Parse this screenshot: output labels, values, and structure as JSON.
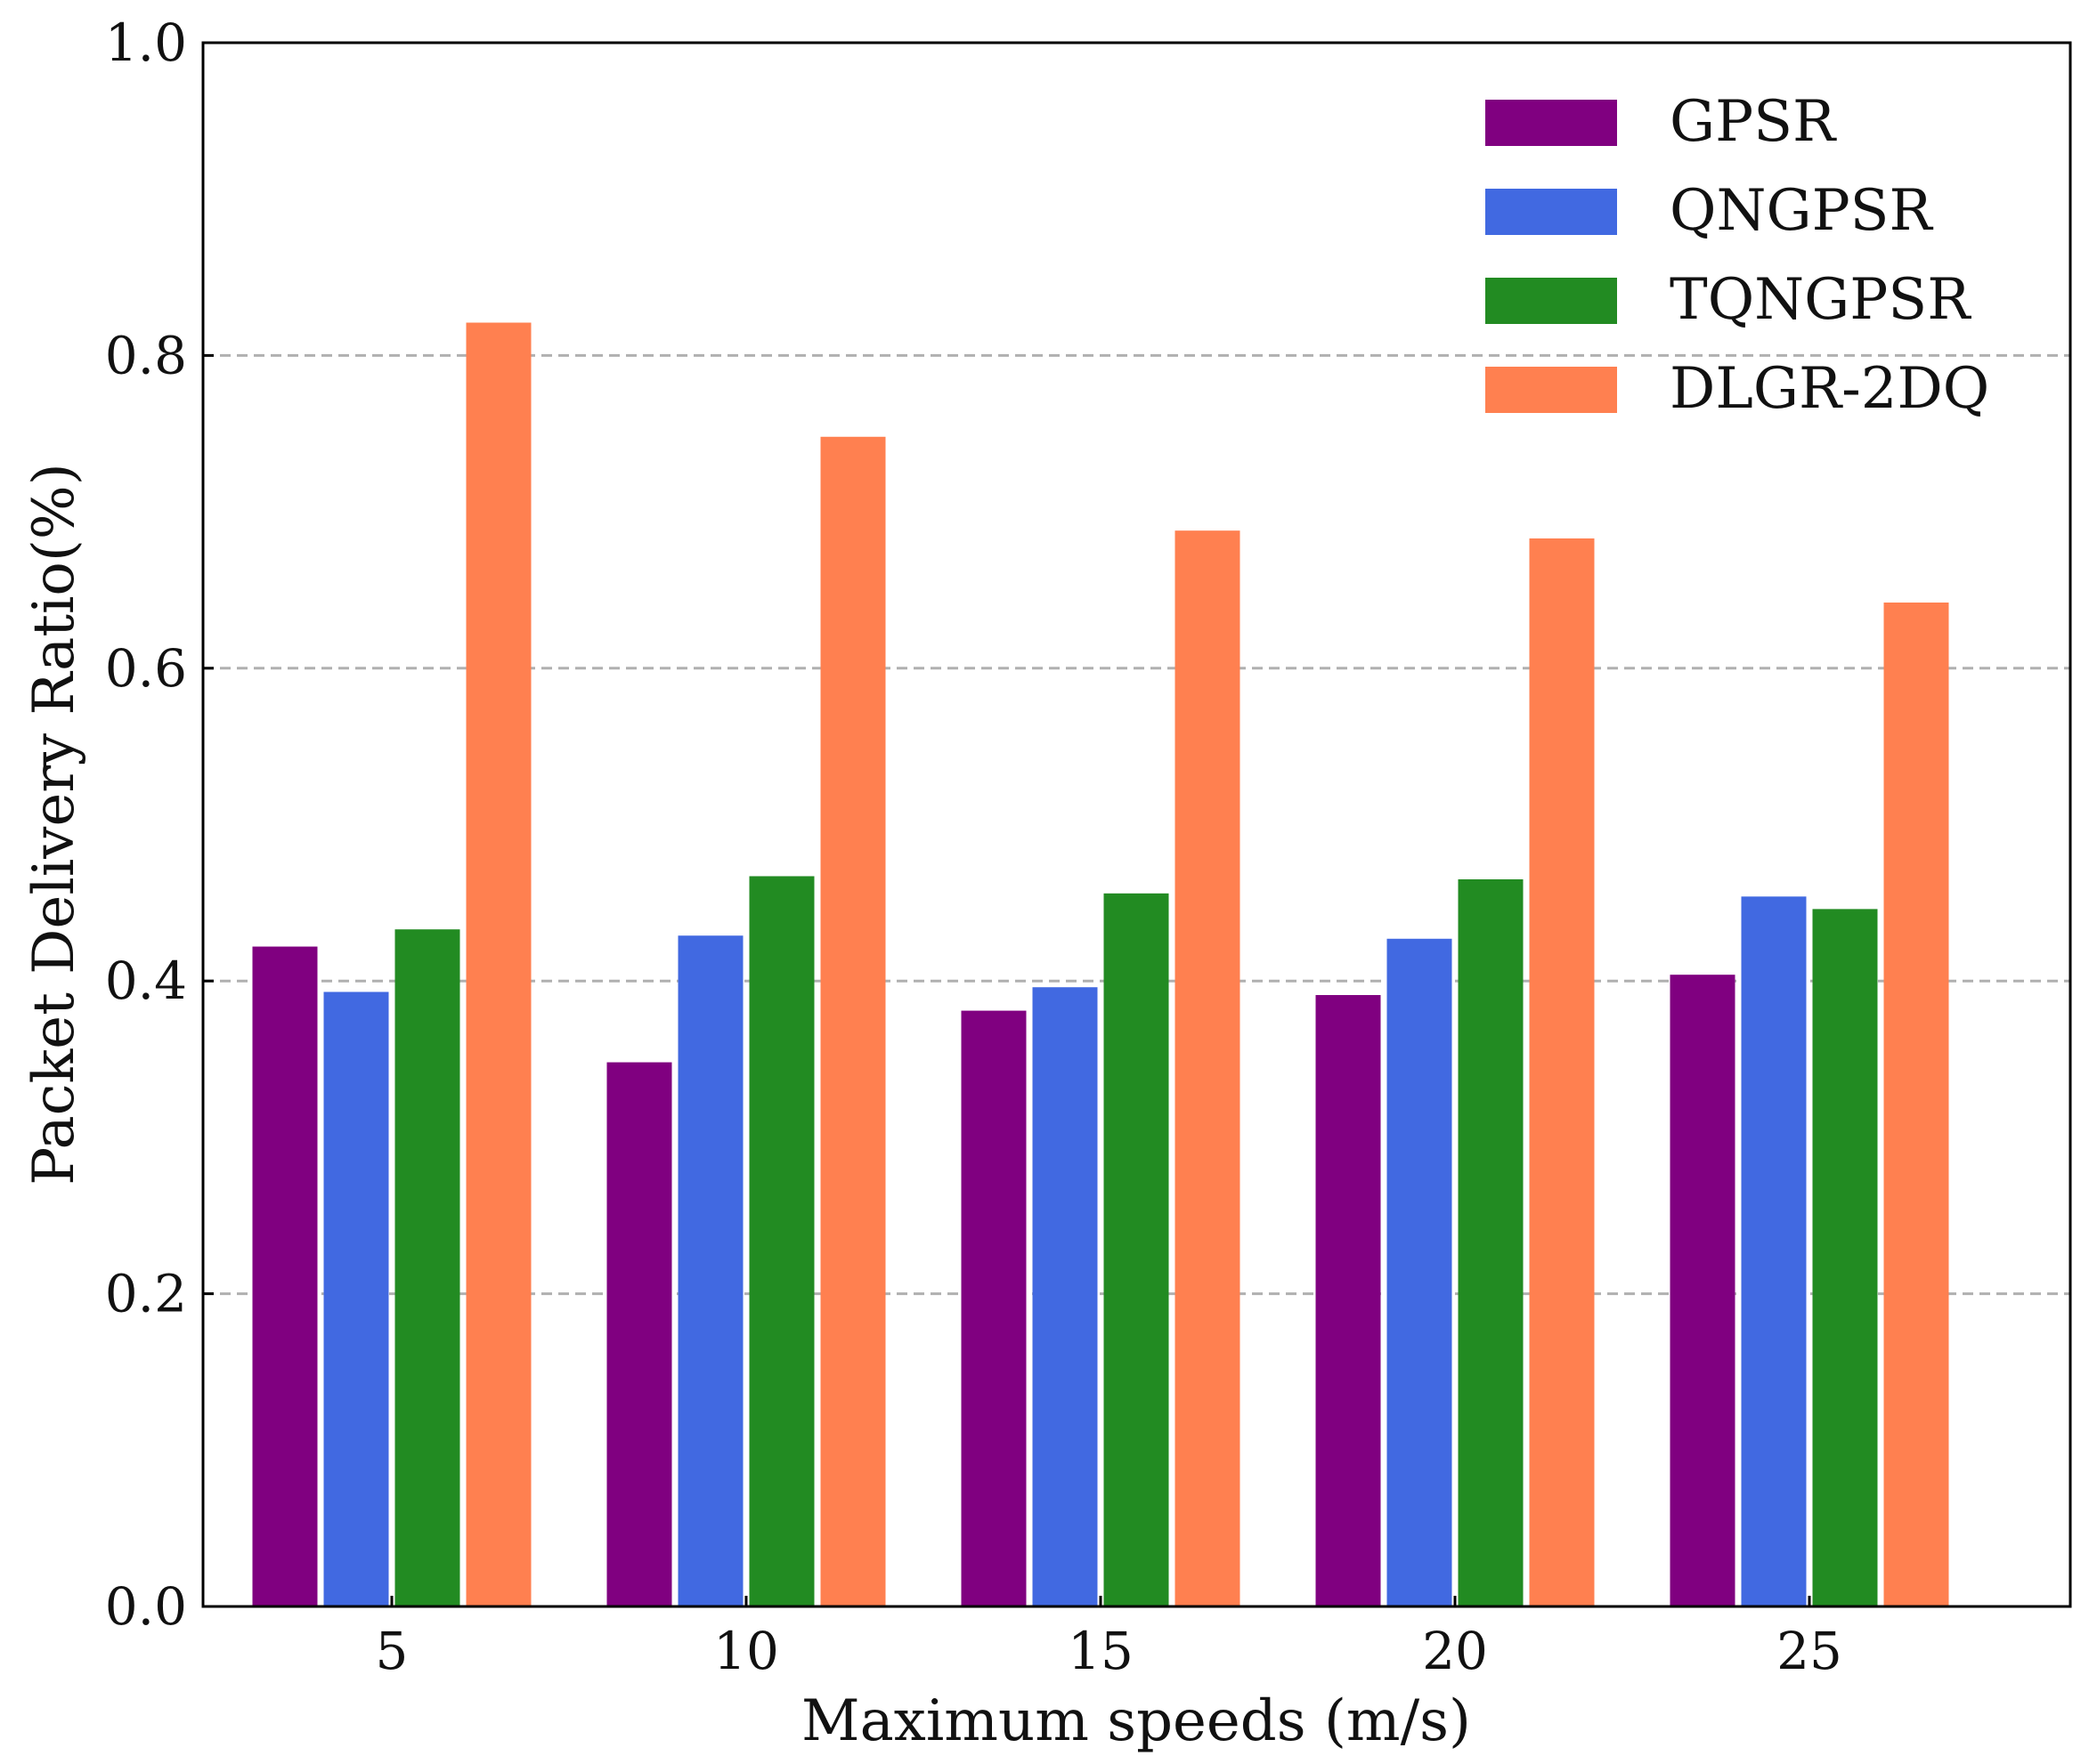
{
  "chart_data": {
    "type": "bar",
    "title": "",
    "xlabel": "Maximum speeds (m/s)",
    "ylabel": "Packet Delivery Ratio(%)",
    "categories": [
      "5",
      "10",
      "15",
      "20",
      "25"
    ],
    "ylim": [
      0.0,
      1.0
    ],
    "yticks": [
      "0.0",
      "0.2",
      "0.4",
      "0.6",
      "0.8",
      "1.0"
    ],
    "grid": "horizontal dashed",
    "legend_position": "top-right",
    "series": [
      {
        "name": "GPSR",
        "color": "#800080",
        "values": [
          0.422,
          0.348,
          0.381,
          0.391,
          0.404
        ]
      },
      {
        "name": "QNGPSR",
        "color": "#4169E1",
        "values": [
          0.393,
          0.429,
          0.396,
          0.427,
          0.454
        ]
      },
      {
        "name": "TQNGPSR",
        "color": "#228B22",
        "values": [
          0.433,
          0.467,
          0.456,
          0.465,
          0.446
        ]
      },
      {
        "name": "DLGR-2DQ",
        "color": "#FF8050",
        "values": [
          0.821,
          0.748,
          0.688,
          0.683,
          0.642
        ]
      }
    ]
  }
}
